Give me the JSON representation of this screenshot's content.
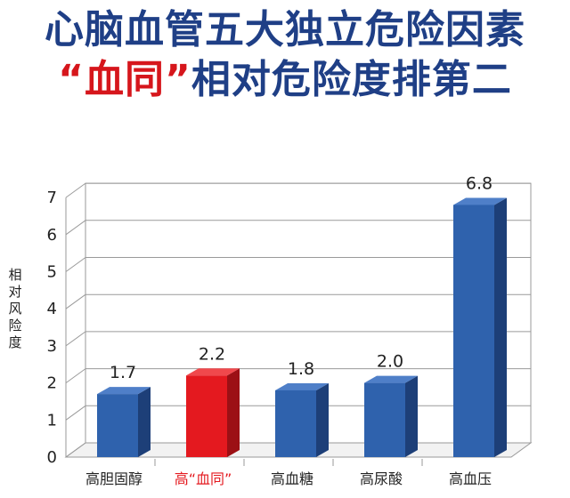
{
  "title_line1": "心脑血管五大独立危险因素",
  "title_line2_highlight": "“血同”",
  "title_line2_rest": "相对危险度排第二",
  "chart_data": {
    "type": "bar",
    "categories": [
      "高胆固醇",
      "高“血同”",
      "高血糖",
      "高尿酸",
      "高血压"
    ],
    "values": [
      1.7,
      2.2,
      1.8,
      2.0,
      6.8
    ],
    "value_labels": [
      "1.7",
      "2.2",
      "1.8",
      "2.0",
      "6.8"
    ],
    "highlight_index": 1,
    "ylabel": "相对风险度",
    "xlabel": "",
    "ylim": [
      0,
      7
    ],
    "yticks": [
      0,
      1,
      2,
      3,
      4,
      5,
      6,
      7
    ],
    "grid": true,
    "colors": {
      "bar": "#2f62ad",
      "bar_side": "#1d3f78",
      "bar_top": "#4f7fc8",
      "highlight": "#e4191f",
      "highlight_side": "#9c1015",
      "highlight_top": "#f0484c",
      "title": "#1f3f86",
      "title_highlight": "#d6161c"
    }
  }
}
